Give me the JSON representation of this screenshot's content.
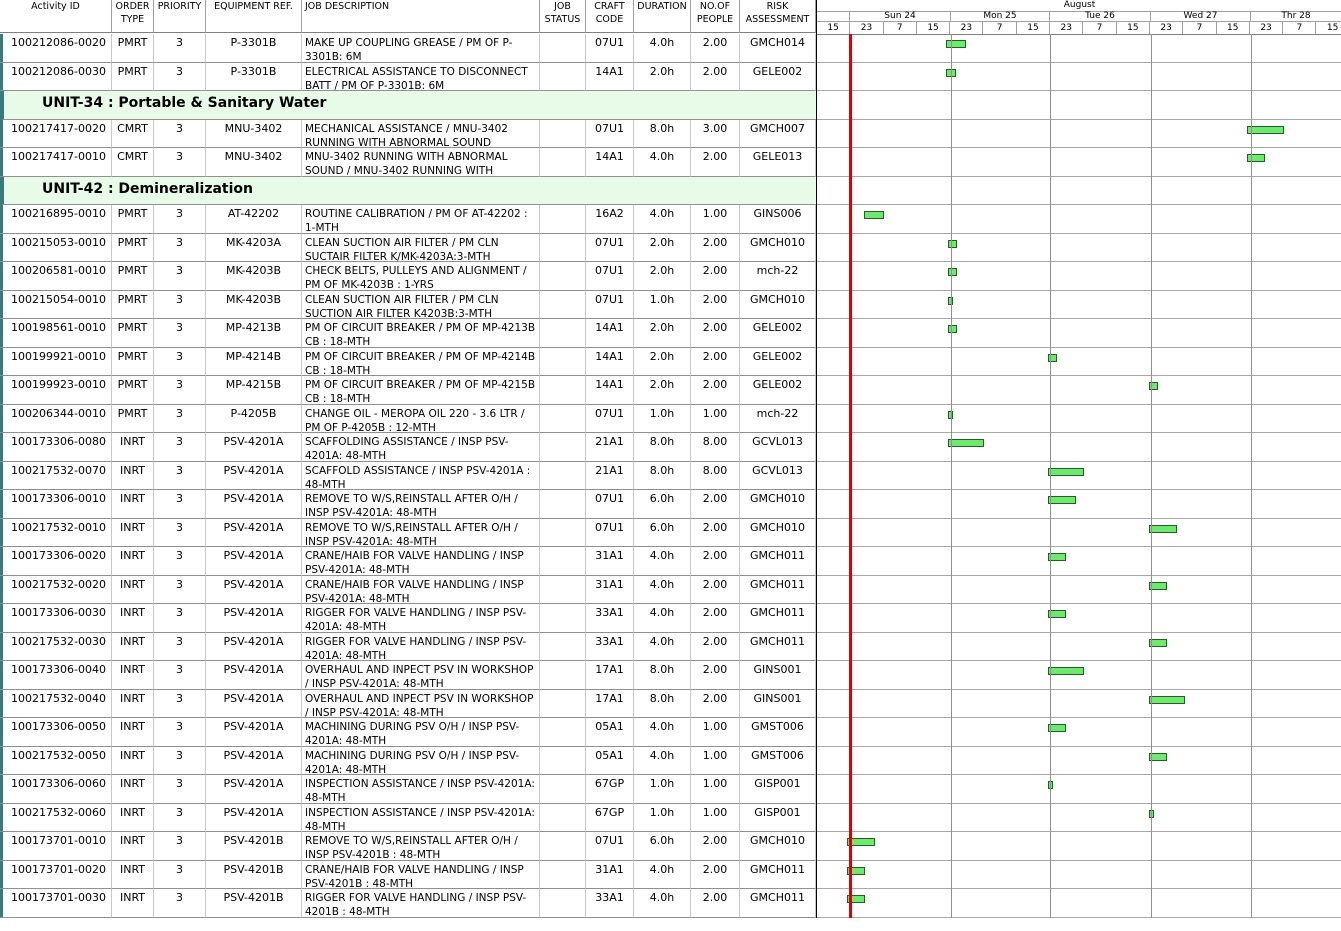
{
  "headers": {
    "activity_id": "Activity ID",
    "order_type": "ORDER\nTYPE",
    "priority": "PRIORITY",
    "equipment": "EQUIPMENT REF.",
    "job_desc": "JOB DESCRIPTION",
    "job_status": "JOB\nSTATUS",
    "craft_code": "CRAFT\nCODE",
    "duration": "DURATION",
    "people": "NO.OF\nPEOPLE",
    "risk": "RISK\nASSESSMENT"
  },
  "timeline": {
    "month": "August",
    "days": [
      "Sun 24",
      "Mon 25",
      "Tue 26",
      "Wed 27",
      "Thr 28"
    ],
    "hours": [
      "15",
      "23",
      "7",
      "15",
      "23",
      "7",
      "15",
      "23",
      "7",
      "15",
      "23",
      "7",
      "15",
      "23",
      "7",
      "15"
    ]
  },
  "rows": [
    {
      "type": "task",
      "id": "100212086-0020",
      "order": "PMRT",
      "prio": "3",
      "equip": "P-3301B",
      "desc": "MAKE UP COUPLING GREASE / PM OF P-3301B: 6M",
      "status": "",
      "craft": "07U1",
      "dur": "4.0h",
      "people": "2.00",
      "risk": "GMCH014",
      "bar_start": 1.27,
      "bar_len": 0.2
    },
    {
      "type": "task",
      "id": "100212086-0030",
      "order": "PMRT",
      "prio": "3",
      "equip": "P-3301B",
      "desc": "ELECTRICAL ASSISTANCE TO DISCONNECT BATT / PM OF P-3301B: 6M",
      "status": "",
      "craft": "14A1",
      "dur": "2.0h",
      "people": "2.00",
      "risk": "GELE002",
      "bar_start": 1.27,
      "bar_len": 0.1
    },
    {
      "type": "unit",
      "label": "UNIT-34 : Portable & Sanitary Water"
    },
    {
      "type": "task",
      "id": "100217417-0020",
      "order": "CMRT",
      "prio": "3",
      "equip": "MNU-3402",
      "desc": "MECHANICAL ASSISTANCE / MNU-3402 RUNNING WITH ABNORMAL SOUND",
      "status": "",
      "craft": "07U1",
      "dur": "8.0h",
      "people": "3.00",
      "risk": "GMCH007",
      "bar_start": 4.27,
      "bar_len": 0.37
    },
    {
      "type": "task",
      "id": "100217417-0010",
      "order": "CMRT",
      "prio": "3",
      "equip": "MNU-3402",
      "desc": "MNU-3402 RUNNING WITH ABNORMAL SOUND / MNU-3402 RUNNING WITH",
      "status": "",
      "craft": "14A1",
      "dur": "4.0h",
      "people": "2.00",
      "risk": "GELE013",
      "bar_start": 4.27,
      "bar_len": 0.18
    },
    {
      "type": "unit",
      "label": "UNIT-42 : Demineralization"
    },
    {
      "type": "task",
      "id": "100216895-0010",
      "order": "PMRT",
      "prio": "3",
      "equip": "AT-42202",
      "desc": "ROUTINE CALIBRATION / PM OF AT-42202 : 1-MTH",
      "status": "",
      "craft": "16A2",
      "dur": "4.0h",
      "people": "1.00",
      "risk": "GINS006",
      "bar_start": 0.46,
      "bar_len": 0.2
    },
    {
      "type": "task",
      "id": "100215053-0010",
      "order": "PMRT",
      "prio": "3",
      "equip": "MK-4203A",
      "desc": "CLEAN SUCTION AIR FILTER / PM CLN SUCTAIR FILTER K/MK-4203A:3-MTH",
      "status": "",
      "craft": "07U1",
      "dur": "2.0h",
      "people": "2.00",
      "risk": "GMCH010",
      "bar_start": 1.29,
      "bar_len": 0.09
    },
    {
      "type": "task",
      "id": "100206581-0010",
      "order": "PMRT",
      "prio": "3",
      "equip": "MK-4203B",
      "desc": "CHECK BELTS, PULLEYS AND ALIGNMENT / PM OF MK-4203B : 1-YRS",
      "status": "",
      "craft": "07U1",
      "dur": "2.0h",
      "people": "2.00",
      "risk": "mch-22",
      "bar_start": 1.29,
      "bar_len": 0.09
    },
    {
      "type": "task",
      "id": "100215054-0010",
      "order": "PMRT",
      "prio": "3",
      "equip": "MK-4203B",
      "desc": "CLEAN SUCTION AIR FILTER / PM CLN SUCTION AIR FILTER K4203B:3-MTH",
      "status": "",
      "craft": "07U1",
      "dur": "1.0h",
      "people": "2.00",
      "risk": "GMCH010",
      "bar_start": 1.29,
      "bar_len": 0.05
    },
    {
      "type": "task",
      "id": "100198561-0010",
      "order": "PMRT",
      "prio": "3",
      "equip": "MP-4213B",
      "desc": "PM OF CIRCUIT BREAKER / PM OF MP-4213B CB : 18-MTH",
      "status": "",
      "craft": "14A1",
      "dur": "2.0h",
      "people": "2.00",
      "risk": "GELE002",
      "bar_start": 1.29,
      "bar_len": 0.09
    },
    {
      "type": "task",
      "id": "100199921-0010",
      "order": "PMRT",
      "prio": "3",
      "equip": "MP-4214B",
      "desc": "PM OF CIRCUIT BREAKER / PM OF MP-4214B CB : 18-MTH",
      "status": "",
      "craft": "14A1",
      "dur": "2.0h",
      "people": "2.00",
      "risk": "GELE002",
      "bar_start": 2.29,
      "bar_len": 0.09
    },
    {
      "type": "task",
      "id": "100199923-0010",
      "order": "PMRT",
      "prio": "3",
      "equip": "MP-4215B",
      "desc": "PM OF CIRCUIT BREAKER / PM OF MP-4215B CB : 18-MTH",
      "status": "",
      "craft": "14A1",
      "dur": "2.0h",
      "people": "2.00",
      "risk": "GELE002",
      "bar_start": 3.29,
      "bar_len": 0.09
    },
    {
      "type": "task",
      "id": "100206344-0010",
      "order": "PMRT",
      "prio": "3",
      "equip": "P-4205B",
      "desc": "CHANGE OIL - MEROPA OIL 220 - 3.6 LTR / PM OF P-4205B : 12-MTH",
      "status": "",
      "craft": "07U1",
      "dur": "1.0h",
      "people": "1.00",
      "risk": "mch-22",
      "bar_start": 1.29,
      "bar_len": 0.05
    },
    {
      "type": "task",
      "id": "100173306-0080",
      "order": "INRT",
      "prio": "3",
      "equip": "PSV-4201A",
      "desc": "SCAFFOLDING ASSISTANCE / INSP PSV-4201A: 48-MTH",
      "status": "",
      "craft": "21A1",
      "dur": "8.0h",
      "people": "8.00",
      "risk": "GCVL013",
      "bar_start": 1.29,
      "bar_len": 0.36
    },
    {
      "type": "task",
      "id": "100217532-0070",
      "order": "INRT",
      "prio": "3",
      "equip": "PSV-4201A",
      "desc": "SCAFFOLD ASSISTANCE / INSP PSV-4201A : 48-MTH",
      "status": "",
      "craft": "21A1",
      "dur": "8.0h",
      "people": "8.00",
      "risk": "GCVL013",
      "bar_start": 2.29,
      "bar_len": 0.36
    },
    {
      "type": "task",
      "id": "100173306-0010",
      "order": "INRT",
      "prio": "3",
      "equip": "PSV-4201A",
      "desc": "REMOVE TO W/S,REINSTALL AFTER O/H / INSP PSV-4201A: 48-MTH",
      "status": "",
      "craft": "07U1",
      "dur": "6.0h",
      "people": "2.00",
      "risk": "GMCH010",
      "bar_start": 2.29,
      "bar_len": 0.28
    },
    {
      "type": "task",
      "id": "100217532-0010",
      "order": "INRT",
      "prio": "3",
      "equip": "PSV-4201A",
      "desc": "REMOVE TO W/S,REINSTALL AFTER O/H / INSP PSV-4201A: 48-MTH",
      "status": "",
      "craft": "07U1",
      "dur": "6.0h",
      "people": "2.00",
      "risk": "GMCH010",
      "bar_start": 3.29,
      "bar_len": 0.28
    },
    {
      "type": "task",
      "id": "100173306-0020",
      "order": "INRT",
      "prio": "3",
      "equip": "PSV-4201A",
      "desc": "CRANE/HAIB FOR VALVE HANDLING / INSP PSV-4201A: 48-MTH",
      "status": "",
      "craft": "31A1",
      "dur": "4.0h",
      "people": "2.00",
      "risk": "GMCH011",
      "bar_start": 2.29,
      "bar_len": 0.18
    },
    {
      "type": "task",
      "id": "100217532-0020",
      "order": "INRT",
      "prio": "3",
      "equip": "PSV-4201A",
      "desc": "CRANE/HAIB FOR VALVE HANDLING / INSP PSV-4201A: 48-MTH",
      "status": "",
      "craft": "31A1",
      "dur": "4.0h",
      "people": "2.00",
      "risk": "GMCH011",
      "bar_start": 3.29,
      "bar_len": 0.18
    },
    {
      "type": "task",
      "id": "100173306-0030",
      "order": "INRT",
      "prio": "3",
      "equip": "PSV-4201A",
      "desc": "RIGGER FOR VALVE HANDLING / INSP PSV-4201A: 48-MTH",
      "status": "",
      "craft": "33A1",
      "dur": "4.0h",
      "people": "2.00",
      "risk": "GMCH011",
      "bar_start": 2.29,
      "bar_len": 0.18
    },
    {
      "type": "task",
      "id": "100217532-0030",
      "order": "INRT",
      "prio": "3",
      "equip": "PSV-4201A",
      "desc": "RIGGER FOR VALVE HANDLING / INSP PSV-4201A: 48-MTH",
      "status": "",
      "craft": "33A1",
      "dur": "4.0h",
      "people": "2.00",
      "risk": "GMCH011",
      "bar_start": 3.29,
      "bar_len": 0.18
    },
    {
      "type": "task",
      "id": "100173306-0040",
      "order": "INRT",
      "prio": "3",
      "equip": "PSV-4201A",
      "desc": "OVERHAUL AND INPECT PSV IN WORKSHOP / INSP PSV-4201A: 48-MTH",
      "status": "",
      "craft": "17A1",
      "dur": "8.0h",
      "people": "2.00",
      "risk": "GINS001",
      "bar_start": 2.29,
      "bar_len": 0.36
    },
    {
      "type": "task",
      "id": "100217532-0040",
      "order": "INRT",
      "prio": "3",
      "equip": "PSV-4201A",
      "desc": "OVERHAUL AND INPECT PSV IN WORKSHOP / INSP PSV-4201A: 48-MTH",
      "status": "",
      "craft": "17A1",
      "dur": "8.0h",
      "people": "2.00",
      "risk": "GINS001",
      "bar_start": 3.29,
      "bar_len": 0.36
    },
    {
      "type": "task",
      "id": "100173306-0050",
      "order": "INRT",
      "prio": "3",
      "equip": "PSV-4201A",
      "desc": "MACHINING DURING PSV O/H / INSP PSV-4201A: 48-MTH",
      "status": "",
      "craft": "05A1",
      "dur": "4.0h",
      "people": "1.00",
      "risk": "GMST006",
      "bar_start": 2.29,
      "bar_len": 0.18
    },
    {
      "type": "task",
      "id": "100217532-0050",
      "order": "INRT",
      "prio": "3",
      "equip": "PSV-4201A",
      "desc": "MACHINING DURING PSV O/H / INSP PSV-4201A: 48-MTH",
      "status": "",
      "craft": "05A1",
      "dur": "4.0h",
      "people": "1.00",
      "risk": "GMST006",
      "bar_start": 3.29,
      "bar_len": 0.18
    },
    {
      "type": "task",
      "id": "100173306-0060",
      "order": "INRT",
      "prio": "3",
      "equip": "PSV-4201A",
      "desc": "INSPECTION ASSISTANCE / INSP PSV-4201A: 48-MTH",
      "status": "",
      "craft": "67GP",
      "dur": "1.0h",
      "people": "1.00",
      "risk": "GISP001",
      "bar_start": 2.29,
      "bar_len": 0.05
    },
    {
      "type": "task",
      "id": "100217532-0060",
      "order": "INRT",
      "prio": "3",
      "equip": "PSV-4201A",
      "desc": "INSPECTION ASSISTANCE / INSP PSV-4201A: 48-MTH",
      "status": "",
      "craft": "67GP",
      "dur": "1.0h",
      "people": "1.00",
      "risk": "GISP001",
      "bar_start": 3.29,
      "bar_len": 0.04
    },
    {
      "type": "task",
      "id": "100173701-0010",
      "order": "INRT",
      "prio": "3",
      "equip": "PSV-4201B",
      "desc": "REMOVE TO W/S,REINSTALL AFTER O/H / INSP PSV-4201B : 48-MTH",
      "status": "",
      "craft": "07U1",
      "dur": "6.0h",
      "people": "2.00",
      "risk": "GMCH010",
      "bar_start": 0.29,
      "bar_len": 0.28
    },
    {
      "type": "task",
      "id": "100173701-0020",
      "order": "INRT",
      "prio": "3",
      "equip": "PSV-4201B",
      "desc": "CRANE/HAIB FOR VALVE HANDLING / INSP PSV-4201B : 48-MTH",
      "status": "",
      "craft": "31A1",
      "dur": "4.0h",
      "people": "2.00",
      "risk": "GMCH011",
      "bar_start": 0.29,
      "bar_len": 0.18
    },
    {
      "type": "task",
      "id": "100173701-0030",
      "order": "INRT",
      "prio": "3",
      "equip": "PSV-4201B",
      "desc": "RIGGER FOR VALVE HANDLING / INSP PSV-4201B : 48-MTH",
      "status": "",
      "craft": "33A1",
      "dur": "4.0h",
      "people": "2.00",
      "risk": "GMCH011",
      "bar_start": 0.29,
      "bar_len": 0.18
    }
  ]
}
